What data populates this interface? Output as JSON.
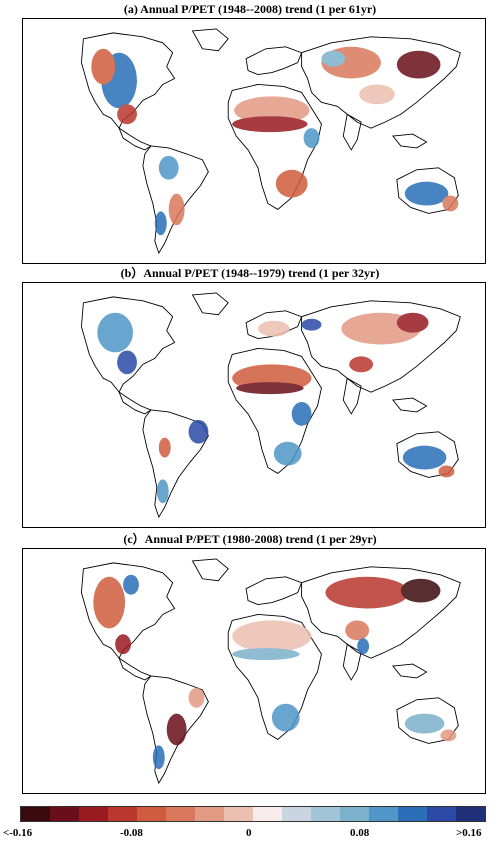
{
  "panels": [
    {
      "title": "(a) Annual P/PET (1948--2008) trend (1 per 61yr)"
    },
    {
      "title": "(b）Annual P/PET (1948--1979) trend (1 per 32yr)"
    },
    {
      "title": "(c）Annual P/PET (1980-2008) trend (1 per 29yr)"
    }
  ],
  "colorbar": {
    "colors": [
      "#3b0a0c",
      "#6a0f1a",
      "#9a1a22",
      "#b9372c",
      "#cf5c3e",
      "#d9785c",
      "#e29a83",
      "#ecc0b0",
      "#f6ecec",
      "#c9d6e2",
      "#a2c4d6",
      "#7cb1cc",
      "#4e97c8",
      "#2a6fb8",
      "#2a4aa5",
      "#1f2f7a"
    ],
    "labels": [
      "<-0.16",
      "-0.08",
      "0",
      "0.08",
      ">0.16"
    ]
  }
}
